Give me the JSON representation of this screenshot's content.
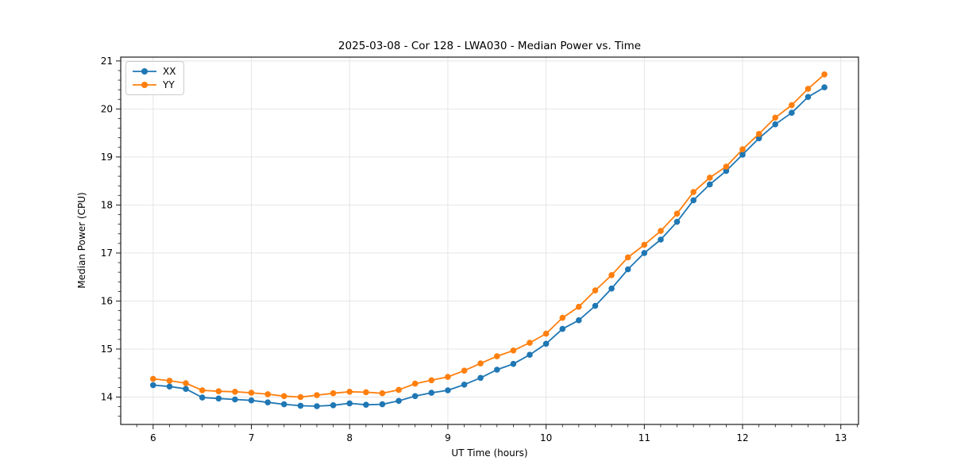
{
  "figure": {
    "title": "2025-03-08 - Cor 128 - LWA030 - Median Power vs. Time"
  },
  "colors": {
    "background": "#ffffff",
    "grid": "#e5e5e5",
    "spine": "#1a1a1a",
    "tick_text": "#000000",
    "series_xx": "#1f77b4",
    "series_yy": "#ff7f0e"
  },
  "chart_data": {
    "type": "line",
    "title": "2025-03-08 - Cor 128 - LWA030 - Median Power vs. Time",
    "xlabel": "UT Time (hours)",
    "ylabel": "Median Power (CPU)",
    "xlim": [
      5.67,
      13.18
    ],
    "ylim": [
      13.43,
      21.08
    ],
    "x_ticks": [
      6,
      7,
      8,
      9,
      10,
      11,
      12,
      13
    ],
    "y_ticks": [
      14,
      15,
      16,
      17,
      18,
      19,
      20,
      21
    ],
    "x_minor_step": 0.1666667,
    "y_minor_step": 0.2,
    "grid": true,
    "legend_position": "upper-left",
    "marker": "circle",
    "x": [
      6.0,
      6.167,
      6.333,
      6.5,
      6.667,
      6.833,
      7.0,
      7.167,
      7.333,
      7.5,
      7.667,
      7.833,
      8.0,
      8.167,
      8.333,
      8.5,
      8.667,
      8.833,
      9.0,
      9.167,
      9.333,
      9.5,
      9.667,
      9.833,
      10.0,
      10.167,
      10.333,
      10.5,
      10.667,
      10.833,
      11.0,
      11.167,
      11.333,
      11.5,
      11.667,
      11.833,
      12.0,
      12.167,
      12.333,
      12.5,
      12.667,
      12.833
    ],
    "series": [
      {
        "name": "XX",
        "color": "#1f77b4",
        "values": [
          14.25,
          14.22,
          14.17,
          13.99,
          13.97,
          13.95,
          13.93,
          13.89,
          13.85,
          13.82,
          13.81,
          13.83,
          13.87,
          13.84,
          13.85,
          13.92,
          14.02,
          14.09,
          14.14,
          14.26,
          14.4,
          14.57,
          14.69,
          14.88,
          15.11,
          15.42,
          15.6,
          15.9,
          16.26,
          16.66,
          17.0,
          17.28,
          17.65,
          18.1,
          18.43,
          18.71,
          19.05,
          19.39,
          19.68,
          19.92,
          20.25,
          20.45
        ]
      },
      {
        "name": "YY",
        "color": "#ff7f0e",
        "values": [
          14.38,
          14.34,
          14.29,
          14.14,
          14.12,
          14.11,
          14.09,
          14.06,
          14.02,
          14.0,
          14.04,
          14.08,
          14.11,
          14.1,
          14.08,
          14.15,
          14.28,
          14.35,
          14.42,
          14.55,
          14.7,
          14.85,
          14.97,
          15.13,
          15.32,
          15.65,
          15.88,
          16.22,
          16.54,
          16.91,
          17.17,
          17.46,
          17.82,
          18.27,
          18.57,
          18.8,
          19.16,
          19.48,
          19.82,
          20.08,
          20.42,
          20.72
        ]
      }
    ]
  }
}
